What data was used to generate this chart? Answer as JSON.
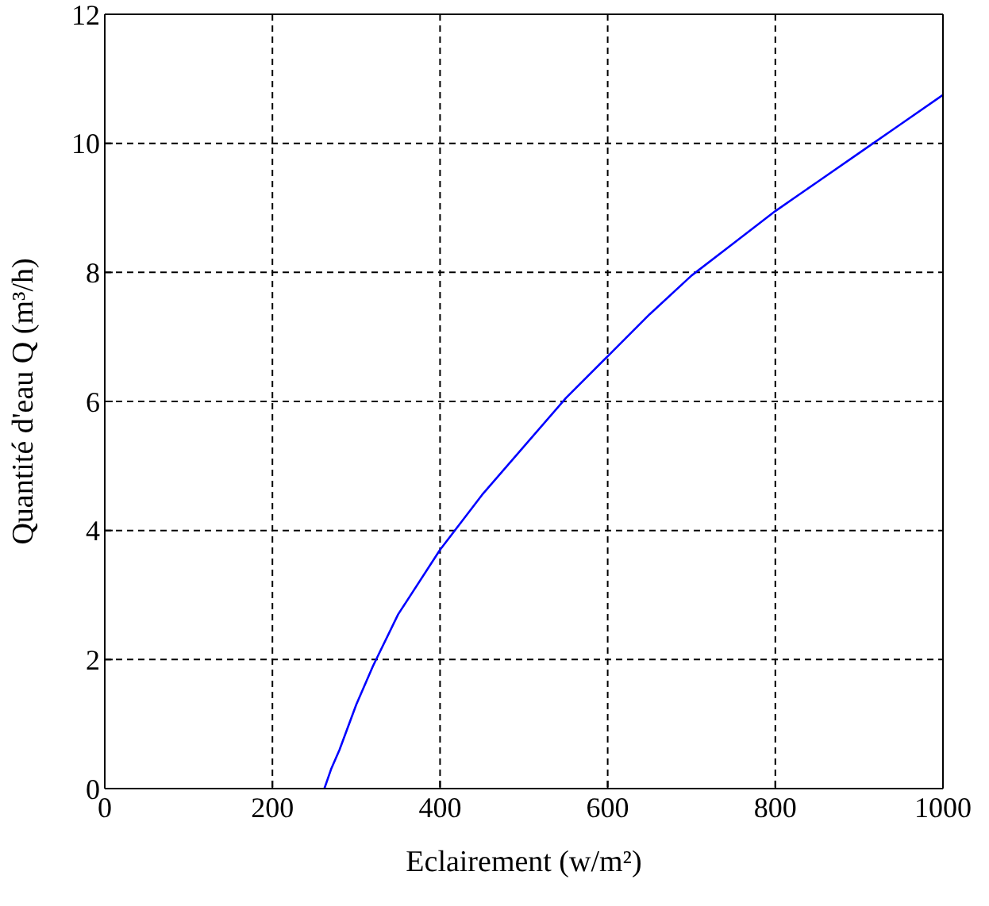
{
  "chart_data": {
    "type": "line",
    "xlabel": "Eclairement (w/m²)",
    "ylabel": "Quantité d'eau Q (m³/h)",
    "x": [
      262,
      270,
      280,
      300,
      320,
      350,
      400,
      450,
      500,
      550,
      600,
      650,
      700,
      750,
      800,
      850,
      900,
      950,
      1000
    ],
    "series": [
      {
        "color": "#0000ff",
        "values": [
          0,
          0.3,
          0.6,
          1.3,
          1.9,
          2.7,
          3.7,
          4.55,
          5.3,
          6.05,
          6.7,
          7.35,
          7.95,
          8.45,
          8.95,
          9.4,
          9.85,
          10.3,
          10.75
        ]
      }
    ],
    "xlim": [
      0,
      1000
    ],
    "xticks": [
      0,
      200,
      400,
      600,
      800,
      1000
    ],
    "ylim": [
      0,
      12
    ],
    "yticks": [
      0,
      2,
      4,
      6,
      8,
      10,
      12
    ],
    "grid": true,
    "marker": "none",
    "line_style": "solid"
  }
}
